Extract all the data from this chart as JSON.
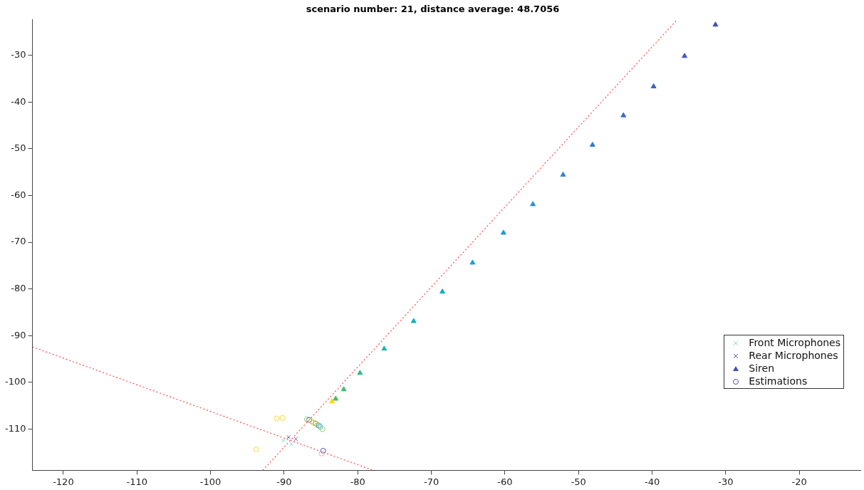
{
  "chart_data": {
    "type": "scatter",
    "title": "scenario number: 21, distance average: 48.7056",
    "xlim": [
      -124.2,
      -11.7
    ],
    "ylim": [
      -118.8,
      -22.4
    ],
    "xticks": [
      -120,
      -110,
      -100,
      -90,
      -80,
      -70,
      -60,
      -50,
      -40,
      -30,
      -20
    ],
    "yticks": [
      -110,
      -100,
      -90,
      -80,
      -70,
      -60,
      -50,
      -40,
      -30
    ],
    "grid": false,
    "legend": "bottom right",
    "series": [
      {
        "name": "Front Microphones",
        "marker": "cross",
        "color": "#7fd6e6",
        "x": [
          -90.1,
          -89.0
        ],
        "values": [
          -112.4,
          -113.2
        ]
      },
      {
        "name": "Rear Microphones",
        "marker": "cross",
        "color": "#5a5ab8",
        "x": [
          -89.4,
          -88.4
        ],
        "values": [
          -111.7,
          -112.1
        ]
      },
      {
        "name": "Siren",
        "marker": "triangle",
        "color": "#3f4fb0",
        "x": [
          -31.4,
          -35.6,
          -39.8,
          -43.9,
          -48.1,
          -52.1,
          -56.2,
          -60.2,
          -64.4,
          -68.5,
          -72.4,
          -76.4,
          -79.7,
          -81.9,
          -83.0,
          -83.5
        ],
        "values": [
          -23.5,
          -30.2,
          -36.7,
          -42.9,
          -49.2,
          -55.6,
          -61.9,
          -68.0,
          -74.4,
          -80.6,
          -86.9,
          -92.8,
          -98.0,
          -101.5,
          -103.5,
          -104.1
        ],
        "colors": [
          "#3f4fb0",
          "#3f5ab8",
          "#3c62c0",
          "#3a6cc8",
          "#3478d0",
          "#2e84d6",
          "#2890d8",
          "#1c9ad8",
          "#12a4d4",
          "#0eacc8",
          "#10b2bc",
          "#1eb8a8",
          "#30b98e",
          "#40bb78",
          "#50bc60",
          "#f5dc14"
        ]
      },
      {
        "name": "Estimations",
        "marker": "circle",
        "color": "#5050b0",
        "x": [
          -91.0,
          -90.2,
          -93.8,
          -86.9,
          -86.6,
          -86.3,
          -86.0,
          -85.7,
          -85.5,
          -85.3,
          -85.1,
          -84.8,
          -84.7,
          -84.9
        ],
        "values": [
          -107.7,
          -107.6,
          -114.3,
          -107.9,
          -108.0,
          -108.3,
          -108.6,
          -108.8,
          -109.1,
          -109.2,
          -109.5,
          -110.0,
          -114.6,
          -115.2
        ],
        "colors": [
          "#f5d742",
          "#f5d742",
          "#f5d742",
          "#90c860",
          "#6a5ab8",
          "#e8c840",
          "#c8c850",
          "#6ab860",
          "#f0c840",
          "#40a0e0",
          "#5ab8d0",
          "#90d070",
          "#5a4fb5",
          "#e8c840"
        ]
      },
      {
        "type": "line",
        "line_style": "dotted",
        "color": "#ff4a4a",
        "x": [
          -92.9,
          -36.6
        ],
        "values": [
          -118.8,
          -22.4
        ]
      },
      {
        "type": "line",
        "line_style": "dotted",
        "color": "#ff4a4a",
        "x": [
          -124.2,
          -77.9
        ],
        "values": [
          -92.4,
          -118.8
        ]
      }
    ]
  }
}
